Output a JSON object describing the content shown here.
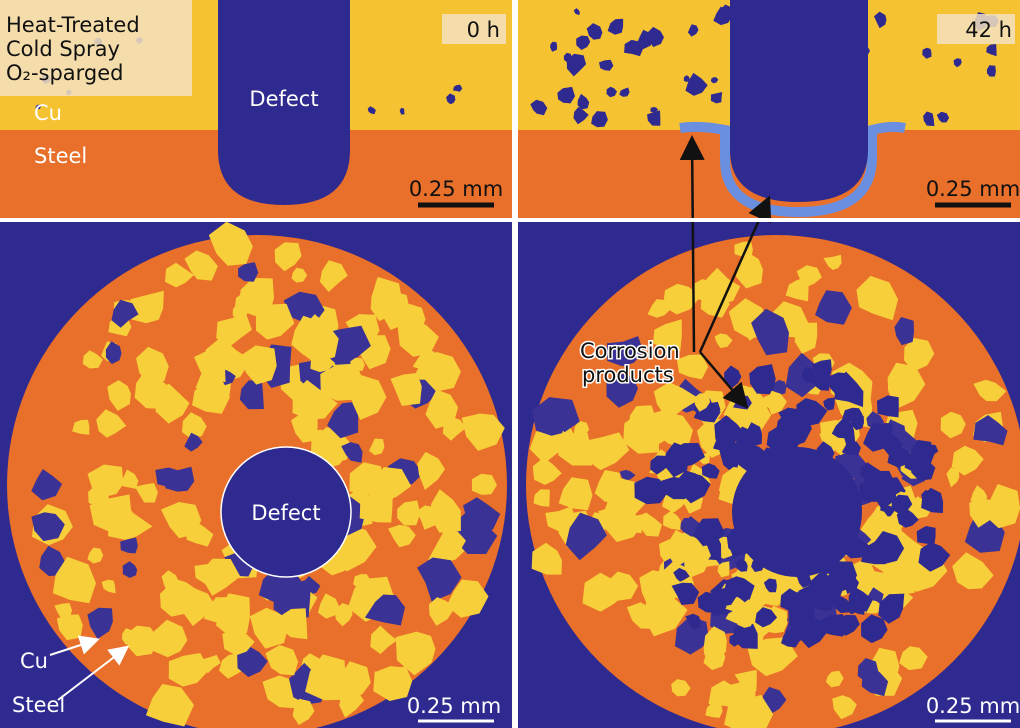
{
  "legend_box": {
    "lines": [
      "Heat-Treated",
      "Cold Spray",
      "O₂-sparged"
    ]
  },
  "panels": [
    {
      "time": "0 h",
      "top": {
        "cu": "Cu",
        "steel": "Steel",
        "defect": "Defect",
        "scale": "0.25 mm"
      },
      "bottom": {
        "defect": "Defect",
        "cu": "Cu",
        "steel": "Steel",
        "scale": "0.25 mm"
      }
    },
    {
      "time": "42 h",
      "top": {
        "scale": "0.25 mm"
      },
      "bottom": {
        "annotation": [
          "Corrosion",
          "products"
        ],
        "scale": "0.25 mm"
      }
    }
  ]
}
